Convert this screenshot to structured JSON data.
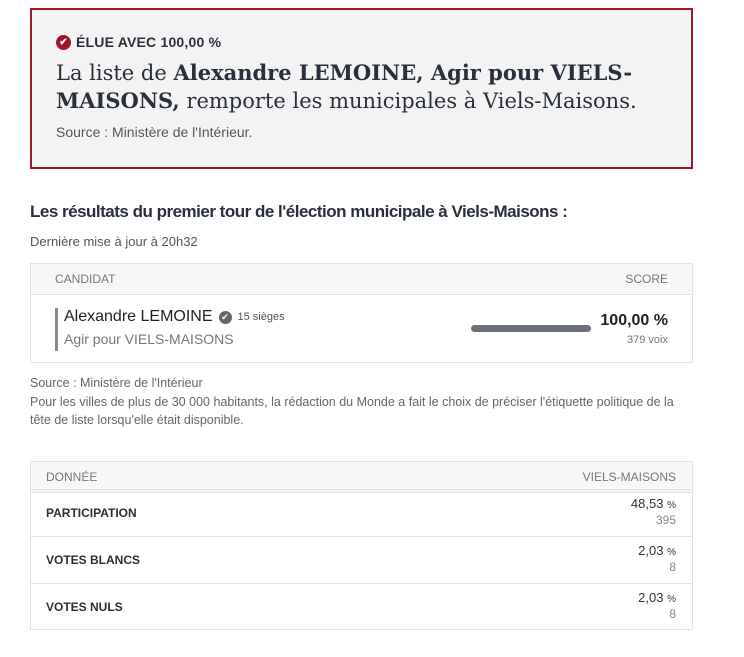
{
  "banner": {
    "badge": "ÉLUE AVEC 100,00 %",
    "headline_before": "La liste de ",
    "headline_bold": "Alexandre LEMOINE, Agir pour VIELS-MAISONS,",
    "headline_after": " remporte les municipales à Viels-Maisons.",
    "source": "Source : Ministère de l'Intérieur."
  },
  "results": {
    "heading": "Les résultats du premier tour de l'élection municipale à Viels-Maisons :",
    "updated": "Dernière mise à jour à 20h32",
    "columns": [
      "CANDIDAT",
      "SCORE"
    ],
    "rows": [
      {
        "name": "Alexandre LEMOINE",
        "seats": "15 sièges",
        "list": "Agir pour VIELS-MAISONS",
        "score": {
          "value": 100,
          "label": "100,00 %"
        },
        "votes": "379 voix"
      }
    ]
  },
  "notes": {
    "source": "Source : Ministère de l'Intérieur",
    "text": "Pour les villes de plus de 30 000 habitants, la rédaction du Monde a fait le choix de préciser l'étiquette politique de la tête de liste lorsqu'elle était disponible."
  },
  "data_table": {
    "columns": [
      "DONNÉE",
      "VIELS-MAISONS"
    ],
    "rows": [
      {
        "label": "PARTICIPATION",
        "value": "48,53",
        "unit": "%",
        "count": "395"
      },
      {
        "label": "VOTES BLANCS",
        "value": "2,03",
        "unit": "%",
        "count": "8"
      },
      {
        "label": "VOTES NULS",
        "value": "2,03",
        "unit": "%",
        "count": "8"
      }
    ]
  }
}
